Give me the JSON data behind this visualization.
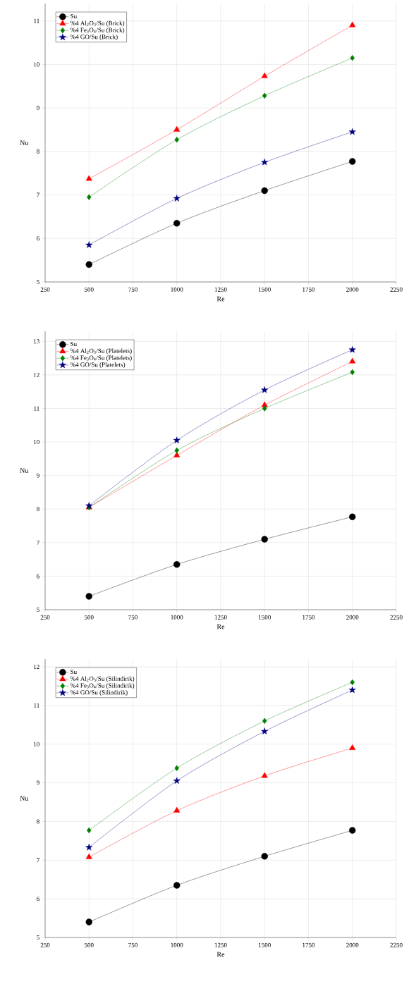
{
  "chart_data": [
    {
      "type": "line",
      "xlabel": "Re",
      "ylabel": "Nu",
      "x": [
        500,
        1000,
        1500,
        2000
      ],
      "xlim": [
        250,
        2250
      ],
      "xticks": [
        250,
        500,
        750,
        1000,
        1250,
        1500,
        1750,
        2000,
        2250
      ],
      "ylim": [
        5,
        11.4
      ],
      "yticks": [
        5,
        6,
        7,
        8,
        9,
        10,
        11
      ],
      "grid": true,
      "legend": "top left",
      "line_style": "solid",
      "series": [
        {
          "name": "Su",
          "color": "#000000",
          "marker": "circle",
          "values": [
            5.4,
            6.35,
            7.1,
            7.77
          ]
        },
        {
          "name": "%4 Al$_{2}$O$_{3}$/Su (Brick)",
          "color": "#ff0000",
          "marker": "triangle",
          "values": [
            7.37,
            8.5,
            9.73,
            10.9
          ]
        },
        {
          "name": "%4 Fe$_{3}$O$_{4}$/Su (Brick)",
          "color": "#008000",
          "marker": "diamond",
          "values": [
            6.95,
            8.27,
            9.28,
            10.15
          ]
        },
        {
          "name": "%4 GO/Su (Brick)",
          "color": "#000080",
          "marker": "star",
          "values": [
            5.85,
            6.92,
            7.75,
            8.45
          ]
        }
      ]
    },
    {
      "type": "line",
      "xlabel": "Re",
      "ylabel": "Nu",
      "x": [
        500,
        1000,
        1500,
        2000
      ],
      "xlim": [
        250,
        2250
      ],
      "xticks": [
        250,
        500,
        750,
        1000,
        1250,
        1500,
        1750,
        2000,
        2250
      ],
      "ylim": [
        5,
        13.3
      ],
      "yticks": [
        5,
        6,
        7,
        8,
        9,
        10,
        11,
        12,
        13
      ],
      "grid": true,
      "legend": "top left",
      "line_style": "solid",
      "series": [
        {
          "name": "Su",
          "color": "#000000",
          "marker": "circle",
          "values": [
            5.4,
            6.35,
            7.1,
            7.77
          ]
        },
        {
          "name": "%4 Al$_{2}$O$_{3}$/Su (Platelets)",
          "color": "#ff0000",
          "marker": "triangle",
          "values": [
            8.05,
            9.6,
            11.1,
            12.4
          ]
        },
        {
          "name": "%4 Fe$_{3}$O$_{4}$/Su (Platelets)",
          "color": "#008000",
          "marker": "diamond",
          "values": [
            8.05,
            9.75,
            11.0,
            12.08
          ]
        },
        {
          "name": "%4 GO/Su (Platelets)",
          "color": "#000080",
          "marker": "star",
          "values": [
            8.1,
            10.05,
            11.55,
            12.75
          ]
        }
      ]
    },
    {
      "type": "line",
      "xlabel": "Re",
      "ylabel": "Nu",
      "x": [
        500,
        1000,
        1500,
        2000
      ],
      "xlim": [
        250,
        2250
      ],
      "xticks": [
        250,
        500,
        750,
        1000,
        1250,
        1500,
        1750,
        2000,
        2250
      ],
      "ylim": [
        5,
        12.2
      ],
      "yticks": [
        5,
        6,
        7,
        8,
        9,
        10,
        11,
        12
      ],
      "grid": true,
      "legend": "top left",
      "line_style": "solid",
      "series": [
        {
          "name": "Su",
          "color": "#000000",
          "marker": "circle",
          "values": [
            5.4,
            6.35,
            7.1,
            7.77
          ]
        },
        {
          "name": "%4 Al$_{2}$O$_{3}$/Su (Silindirik)",
          "color": "#ff0000",
          "marker": "triangle",
          "values": [
            7.08,
            8.28,
            9.18,
            9.9
          ]
        },
        {
          "name": "%4 Fe$_{3}$O$_{4}$/Su (Silindirik)",
          "color": "#008000",
          "marker": "diamond",
          "values": [
            7.77,
            9.38,
            10.6,
            11.6
          ]
        },
        {
          "name": "%4 GO/Su (Silindirik)",
          "color": "#000080",
          "marker": "star",
          "values": [
            7.33,
            9.05,
            10.33,
            11.4
          ]
        }
      ]
    }
  ]
}
